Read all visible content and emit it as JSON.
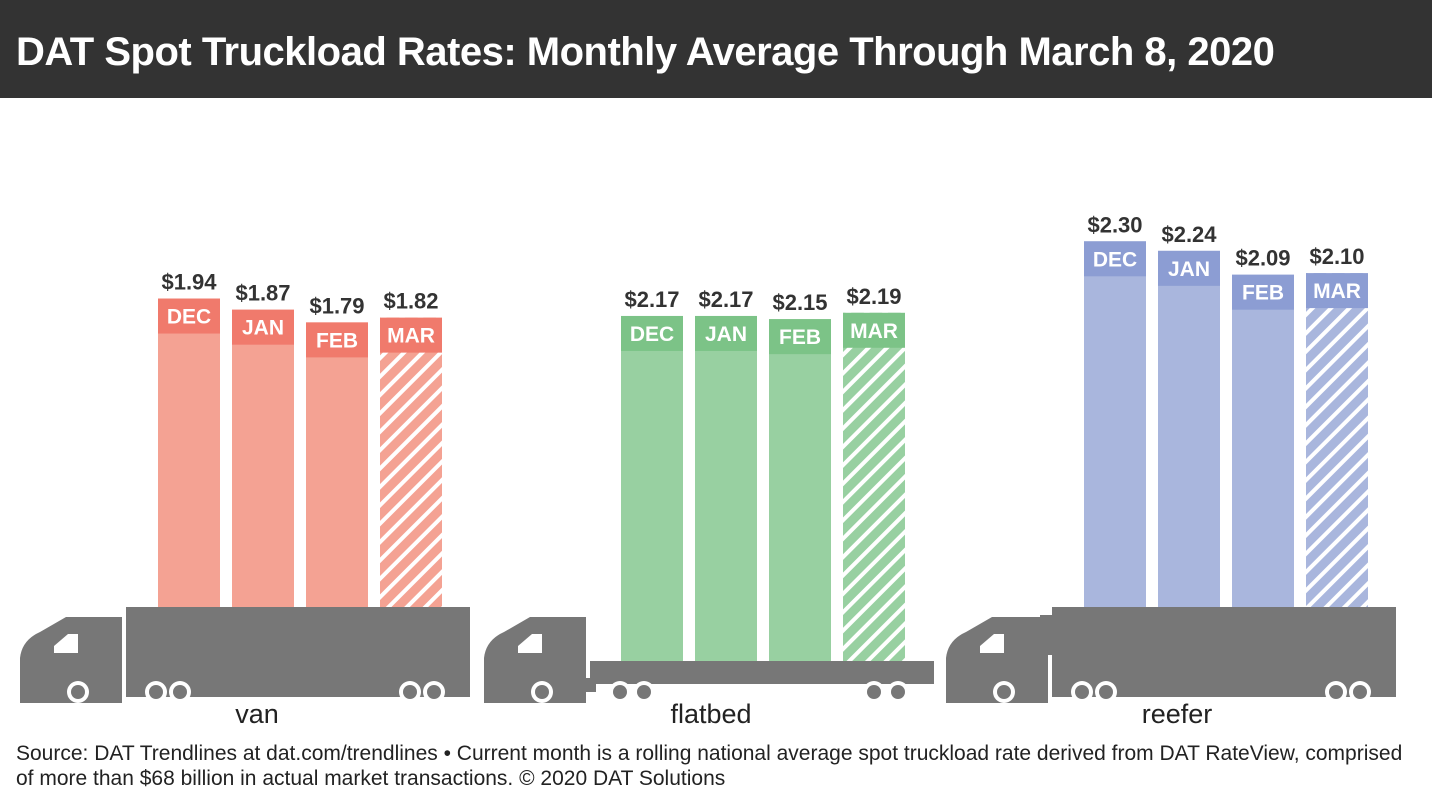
{
  "title": "DAT Spot Truckload Rates: Monthly Average Through March 8, 2020",
  "footer": "Source: DAT Trendlines at dat.com/trendlines • Current month is a rolling national average spot truckload rate derived from DAT RateView, comprised of more than $68 billion in actual market transactions. © 2020 DAT Solutions",
  "chart_data": {
    "type": "bar",
    "title": "DAT Spot Truckload Rates: Monthly Average Through March 8, 2020",
    "categories": [
      "DEC",
      "JAN",
      "FEB",
      "MAR"
    ],
    "hatched_category": "MAR",
    "value_prefix": "$",
    "groups": [
      {
        "name": "van",
        "values": [
          1.94,
          1.87,
          1.79,
          1.82
        ],
        "labels": [
          "$1.94",
          "$1.87",
          "$1.79",
          "$1.82"
        ],
        "color": "#f4a293",
        "accent": "#f07a6c"
      },
      {
        "name": "flatbed",
        "values": [
          2.17,
          2.17,
          2.15,
          2.19
        ],
        "labels": [
          "$2.17",
          "$2.17",
          "$2.15",
          "$2.19"
        ],
        "color": "#98d0a1",
        "accent": "#7cc387"
      },
      {
        "name": "reefer",
        "values": [
          2.3,
          2.24,
          2.09,
          2.1
        ],
        "labels": [
          "$2.30",
          "$2.24",
          "$2.09",
          "$2.10"
        ],
        "color": "#a9b6dd",
        "accent": "#8c9dd3"
      }
    ],
    "truck_color": "#777777"
  }
}
